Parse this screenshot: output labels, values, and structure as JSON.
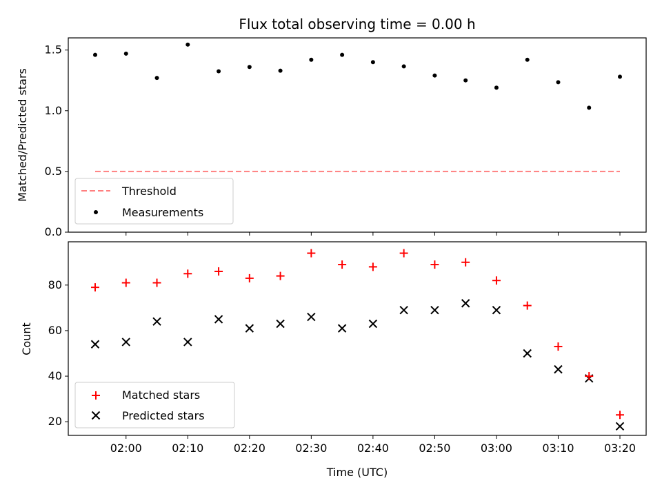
{
  "chart_data": [
    {
      "type": "scatter",
      "title": "Flux total observing time = 0.00 h",
      "xlabel": "",
      "ylabel": "Matched/Predicted stars",
      "ylim": [
        0.0,
        1.6
      ],
      "yticks": [
        "0.0",
        "0.5",
        "1.0",
        "1.5"
      ],
      "x": [
        "01:55",
        "02:00",
        "02:05",
        "02:10",
        "02:15",
        "02:20",
        "02:25",
        "02:30",
        "02:35",
        "02:40",
        "02:45",
        "02:50",
        "02:55",
        "03:00",
        "03:05",
        "03:10",
        "03:15",
        "03:20"
      ],
      "series": [
        {
          "name": "Measurements",
          "marker": "dot",
          "color": "#000000",
          "values": [
            1.46,
            1.47,
            1.27,
            1.545,
            1.325,
            1.36,
            1.33,
            1.42,
            1.46,
            1.4,
            1.365,
            1.29,
            1.25,
            1.19,
            1.42,
            1.235,
            1.025,
            1.28
          ]
        },
        {
          "name": "Threshold",
          "marker": "dashed-line",
          "color": "#ff7f7f",
          "values": [
            0.5,
            0.5
          ]
        }
      ],
      "legend": "lower-left"
    },
    {
      "type": "scatter",
      "xlabel": "Time (UTC)",
      "ylabel": "Count",
      "ylim": [
        14,
        99
      ],
      "yticks": [
        "20",
        "40",
        "60",
        "80"
      ],
      "xticks": [
        "02:00",
        "02:10",
        "02:20",
        "02:30",
        "02:40",
        "02:50",
        "03:00",
        "03:10",
        "03:20"
      ],
      "x": [
        "01:55",
        "02:00",
        "02:05",
        "02:10",
        "02:15",
        "02:20",
        "02:25",
        "02:30",
        "02:35",
        "02:40",
        "02:45",
        "02:50",
        "02:55",
        "03:00",
        "03:05",
        "03:10",
        "03:15",
        "03:20"
      ],
      "series": [
        {
          "name": "Matched stars",
          "marker": "plus",
          "color": "#ff0000",
          "values": [
            79,
            81,
            81,
            85,
            86,
            83,
            84,
            94,
            89,
            88,
            94,
            89,
            90,
            82,
            71,
            53,
            40,
            23
          ]
        },
        {
          "name": "Predicted stars",
          "marker": "x",
          "color": "#000000",
          "values": [
            54,
            55,
            64,
            55,
            65,
            61,
            63,
            66,
            61,
            63,
            69,
            69,
            72,
            69,
            50,
            43,
            39,
            18
          ]
        }
      ],
      "legend": "lower-left"
    }
  ]
}
